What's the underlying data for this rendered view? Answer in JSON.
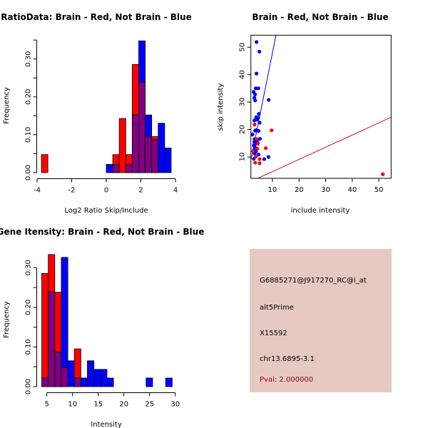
{
  "colors": {
    "brain": "#ff0000",
    "not_brain": "#0000ff",
    "overlap": "#800080",
    "panel_bg": "#e6c9c3",
    "pval": "#990000"
  },
  "chart_data": [
    {
      "id": "ratio",
      "type": "bar",
      "title": "RatioData: Brain - Red, Not Brain - Blue",
      "xlabel": "Log2 Ratio Skip/Include",
      "ylabel": "Frequency",
      "xlim": [
        -4,
        4
      ],
      "ylim": [
        0,
        0.35
      ],
      "xticks": [
        "-4",
        "-2",
        "0",
        "2",
        "4"
      ],
      "yticks": [
        "0.00",
        "0.10",
        "0.20",
        "0.30"
      ],
      "bin_start": -3.75,
      "bin_width": 0.375,
      "series": [
        {
          "name": "Brain",
          "values": [
            0.0476,
            0,
            0,
            0,
            0,
            0,
            0,
            0,
            0,
            0,
            0,
            0.0476,
            0.1429,
            0.0476,
            0.2857,
            0.2381,
            0.0952,
            0.0952,
            0,
            0
          ]
        },
        {
          "name": "Not Brain",
          "values": [
            0,
            0,
            0,
            0,
            0,
            0,
            0,
            0,
            0,
            0,
            0.0217,
            0.0217,
            0,
            0.0217,
            0.1522,
            0.3478,
            0.1522,
            0.087,
            0.1304,
            0.0652
          ]
        }
      ]
    },
    {
      "id": "scatter",
      "type": "scatter",
      "title": "Brain - Red, Not Brain - Blue",
      "xlabel": "include intensity",
      "ylabel": "skip intensity",
      "xlim": [
        1.9,
        54.6
      ],
      "ylim": [
        2.2,
        54.4
      ],
      "xticks": [
        "10",
        "20",
        "30",
        "40",
        "50"
      ],
      "yticks": [
        "10",
        "20",
        "30",
        "40",
        "50"
      ],
      "lines": [
        {
          "name": "Not Brain fit",
          "slope": 4.82,
          "intercept": -0.26
        },
        {
          "name": "Brain fit",
          "slope": 0.445,
          "intercept": 0.2
        }
      ],
      "series": [
        {
          "name": "Not Brain",
          "points": [
            [
              4.0,
              51.9
            ],
            [
              5.1,
              48.4
            ],
            [
              4.0,
              40.4
            ],
            [
              3.7,
              35.0
            ],
            [
              4.7,
              35.0
            ],
            [
              2.9,
              33.7
            ],
            [
              3.5,
              32.8
            ],
            [
              3.2,
              31.6
            ],
            [
              3.5,
              30.6
            ],
            [
              8.6,
              30.8
            ],
            [
              4.9,
              25.7
            ],
            [
              3.9,
              24.5
            ],
            [
              4.6,
              24.3
            ],
            [
              3.2,
              23.3
            ],
            [
              4.2,
              23.6
            ],
            [
              5.2,
              22.5
            ],
            [
              2.5,
              18.2
            ],
            [
              3.5,
              19.6
            ],
            [
              4.0,
              19.8
            ],
            [
              4.8,
              19.5
            ],
            [
              3.3,
              16.5
            ],
            [
              5.3,
              16.6
            ],
            [
              4.2,
              16.0
            ],
            [
              3.2,
              15.5
            ],
            [
              3.6,
              14.8
            ],
            [
              4.5,
              15.1
            ],
            [
              3.0,
              14.2
            ],
            [
              3.5,
              13.5
            ],
            [
              4.2,
              13.0
            ],
            [
              3.1,
              12.5
            ],
            [
              3.8,
              12.0
            ],
            [
              3.3,
              11.3
            ],
            [
              4.8,
              10.9
            ],
            [
              3.0,
              9.3
            ],
            [
              6.9,
              9.2
            ],
            [
              8.5,
              10.0
            ]
          ]
        },
        {
          "name": "Brain",
          "points": [
            [
              3.3,
              21.8
            ],
            [
              9.7,
              19.7
            ],
            [
              7.5,
              13.2
            ],
            [
              2.7,
              12.2
            ],
            [
              3.5,
              7.9
            ],
            [
              5.2,
              9.2
            ],
            [
              5.2,
              7.7
            ],
            [
              51.5,
              3.7
            ],
            [
              4.5,
              14.8
            ],
            [
              4.0,
              16.5
            ],
            [
              3.8,
              10.2
            ],
            [
              4.3,
              13.0
            ]
          ]
        }
      ]
    },
    {
      "id": "intensity",
      "type": "bar",
      "title": "Gene Itensity: Brain - Red, Not Brain - Blue",
      "xlabel": "Intensity",
      "ylabel": "Frequency",
      "xlim": [
        5,
        30
      ],
      "ylim": [
        0,
        0.3
      ],
      "xticks": [
        "5",
        "10",
        "15",
        "20",
        "25",
        "30"
      ],
      "yticks": [
        "0.00",
        "0.10",
        "0.20",
        "0.30"
      ],
      "bin_start": 4,
      "bin_width": 1.27,
      "series": [
        {
          "name": "Brain",
          "values": [
            0.2857,
            0.3333,
            0.2381,
            0.0476,
            0,
            0.0952,
            0,
            0,
            0,
            0,
            0,
            0,
            0,
            0,
            0,
            0,
            0,
            0,
            0,
            0
          ]
        },
        {
          "name": "Not Brain",
          "values": [
            0.0217,
            0.2391,
            0.087,
            0.3261,
            0.0652,
            0.0217,
            0.0217,
            0.0652,
            0.0435,
            0.0435,
            0.0217,
            0,
            0,
            0,
            0,
            0,
            0.0217,
            0,
            0,
            0.0217
          ]
        }
      ]
    }
  ],
  "info_panel": {
    "probe_id": "G6885271@J917270_RC@i_at",
    "event_type": "alt5Prime",
    "accession": "X15592",
    "location": "chr13.6895-3.1",
    "pval": "Pval: 2.000000"
  }
}
